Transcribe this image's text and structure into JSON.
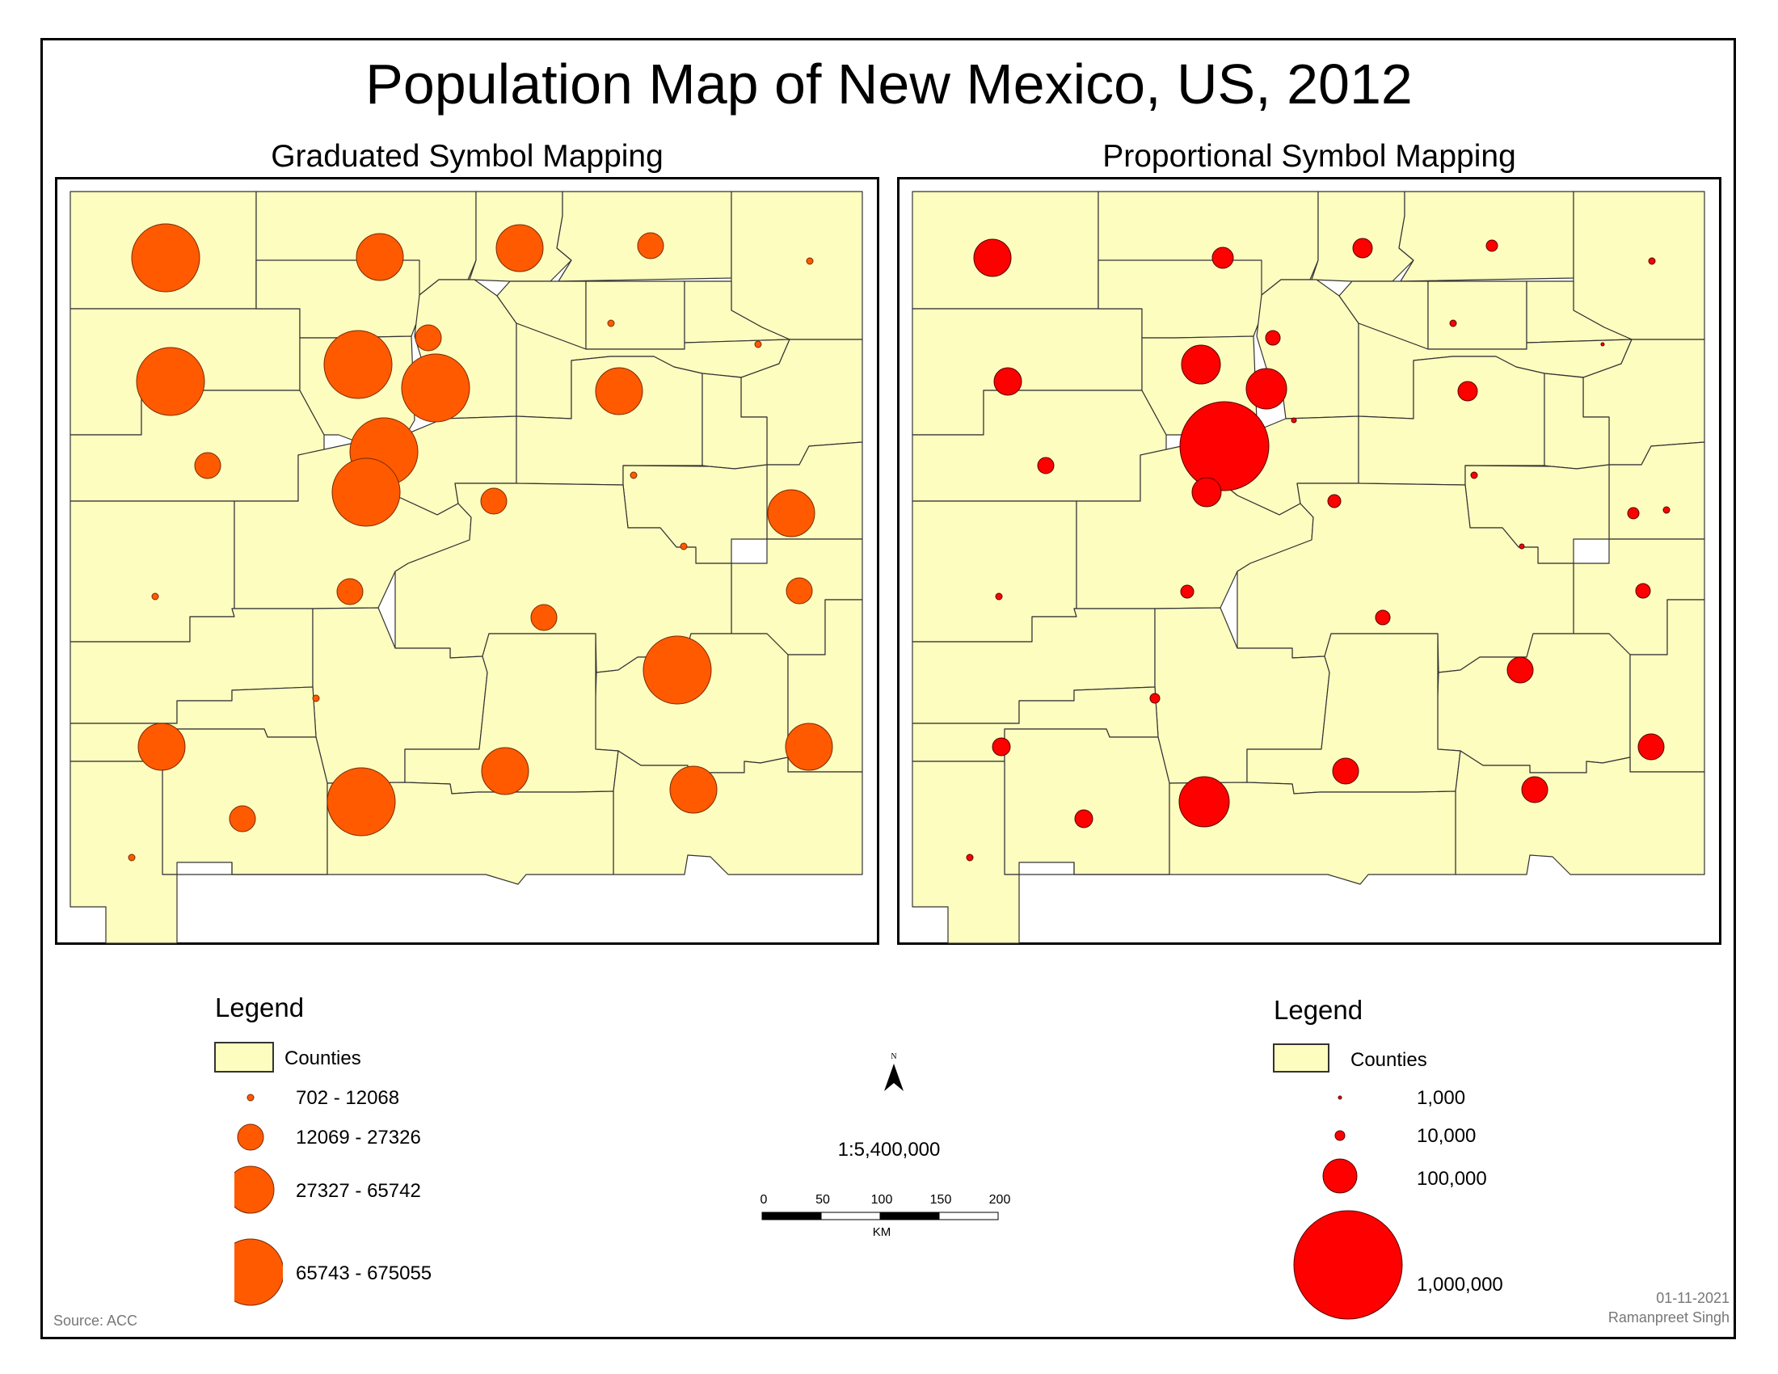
{
  "map": {
    "title": "Population Map of New Mexico, US, 2012",
    "source": "Source: ACC",
    "date": "01-11-2021",
    "author": "Ramanpreet Singh",
    "north_label": "N",
    "scale": {
      "ratio": "1:5,400,000",
      "ticks": [
        "0",
        "50",
        "100",
        "150",
        "200"
      ],
      "unit": "KM"
    },
    "colors": {
      "county_fill": "#fefdc0",
      "county_stroke": "#333333",
      "graduated_symbol": "#ff5a00",
      "proportional_symbol": "#ff0000"
    }
  },
  "graduated": {
    "title": "Graduated Symbol Mapping",
    "symbol_class_sizes": [
      1,
      2,
      3,
      4
    ],
    "legend": {
      "title": "Legend",
      "counties_label": "Counties",
      "classes": [
        {
          "label": "702 - 12068",
          "class": 1
        },
        {
          "label": "12069 - 27326",
          "class": 2
        },
        {
          "label": "27327 - 65742",
          "class": 3
        },
        {
          "label": "65743 - 675055",
          "class": 4
        }
      ]
    }
  },
  "proportional": {
    "title": "Proportional Symbol Mapping",
    "legend": {
      "title": "Legend",
      "counties_label": "Counties",
      "values": [
        {
          "label": "1,000",
          "value": 1000
        },
        {
          "label": "10,000",
          "value": 10000
        },
        {
          "label": "100,000",
          "value": 100000
        },
        {
          "label": "1,000,000",
          "value": 1000000
        }
      ]
    }
  }
}
